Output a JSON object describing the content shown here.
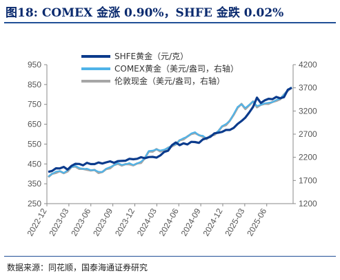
{
  "header": {
    "title": "图18:  COMEX 金涨 0.90%，SHFE 金跌 0.02%"
  },
  "footer": {
    "source": "数据来源：同花顺，国泰海通证券研究"
  },
  "chart_data": {
    "type": "line",
    "title": "图18:  COMEX 金涨 0.90%，SHFE 金跌 0.02%",
    "x_tick_labels": [
      "2022-12",
      "2023-03",
      "2023-06",
      "2023-09",
      "2023-12",
      "2024-03",
      "2024-06",
      "2024-09",
      "2024-12",
      "2025-03",
      "2025-06"
    ],
    "x_range": [
      "2022-12",
      "2025-08"
    ],
    "left_axis": {
      "ticks": [
        250,
        350,
        450,
        550,
        650,
        750,
        850,
        950
      ],
      "ylim": [
        250,
        950
      ]
    },
    "right_axis": {
      "ticks": [
        1200,
        1700,
        2200,
        2700,
        3200,
        3700,
        4200
      ],
      "ylim": [
        1200,
        4200
      ]
    },
    "legend_position": "top-left",
    "series": [
      {
        "name": "SHFE黄金（元/克）",
        "axis": "left",
        "color": "#0b3b8c",
        "values": [
          410,
          418,
          424,
          430,
          436,
          418,
          444,
          449,
          448,
          447,
          452,
          450,
          452,
          453,
          455,
          458,
          460,
          460,
          462,
          464,
          470,
          472,
          475,
          478,
          480,
          482,
          484,
          483,
          486,
          490,
          510,
          520,
          540,
          560,
          546,
          550,
          552,
          560,
          558,
          560,
          570,
          580,
          590,
          600,
          610,
          612,
          618,
          625,
          630,
          650,
          670,
          680,
          710,
          740,
          780,
          760,
          770,
          775,
          780,
          785,
          780,
          790,
          820,
          835
        ]
      },
      {
        "name": "COMEX黄金（美元/盎司，右轴）",
        "axis": "right",
        "color": "#4fb3e8",
        "values": [
          1800,
          1840,
          1880,
          1920,
          1850,
          1920,
          2000,
          2000,
          1980,
          1950,
          1940,
          1940,
          1920,
          1880,
          1900,
          1940,
          1990,
          2040,
          2060,
          2050,
          2050,
          2060,
          2050,
          2060,
          2100,
          2200,
          2320,
          2350,
          2380,
          2330,
          2380,
          2400,
          2450,
          2500,
          2560,
          2610,
          2660,
          2700,
          2750,
          2680,
          2650,
          2620,
          2660,
          2700,
          2780,
          2860,
          2920,
          3000,
          3120,
          3300,
          3350,
          3250,
          3350,
          3400,
          3300,
          3350,
          3350,
          3380,
          3400,
          3420,
          3480,
          3550,
          3650,
          3730
        ]
      },
      {
        "name": "伦敦现金（美元/盎司，右轴）",
        "axis": "right",
        "color": "#a6a6a6",
        "values": [
          1790,
          1830,
          1870,
          1910,
          1840,
          1910,
          1990,
          1990,
          1970,
          1940,
          1930,
          1930,
          1910,
          1870,
          1890,
          1930,
          1980,
          2030,
          2050,
          2040,
          2040,
          2050,
          2040,
          2050,
          2090,
          2190,
          2310,
          2340,
          2370,
          2320,
          2370,
          2390,
          2440,
          2490,
          2550,
          2600,
          2650,
          2690,
          2740,
          2670,
          2640,
          2610,
          2650,
          2690,
          2770,
          2850,
          2910,
          2990,
          3110,
          3290,
          3340,
          3240,
          3340,
          3390,
          3290,
          3340,
          3340,
          3370,
          3390,
          3410,
          3470,
          3540,
          3640,
          3720
        ]
      }
    ]
  }
}
